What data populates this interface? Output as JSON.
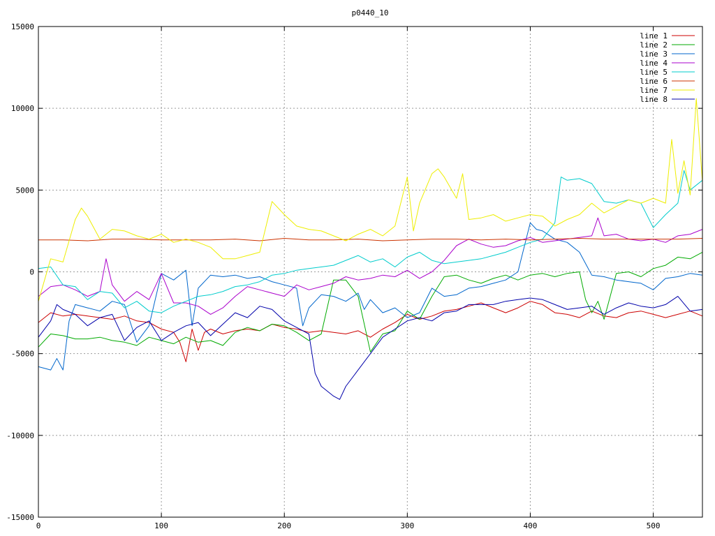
{
  "chart_data": {
    "type": "line",
    "title": "p0440_10",
    "xlabel": "",
    "ylabel": "",
    "xlim": [
      0,
      540
    ],
    "ylim": [
      -15000,
      15000
    ],
    "x_ticks": [
      0,
      100,
      200,
      300,
      400,
      500
    ],
    "y_ticks": [
      -15000,
      -10000,
      -5000,
      0,
      5000,
      10000,
      15000
    ],
    "grid": true,
    "legend_position": "top-right",
    "series": [
      {
        "name": "line 1",
        "color": "#cc0000",
        "x": [
          0,
          10,
          20,
          30,
          40,
          50,
          60,
          70,
          80,
          90,
          100,
          110,
          115,
          120,
          125,
          130,
          135,
          140,
          150,
          160,
          170,
          180,
          190,
          200,
          210,
          220,
          230,
          240,
          250,
          260,
          270,
          280,
          290,
          300,
          310,
          320,
          330,
          340,
          350,
          360,
          370,
          380,
          390,
          400,
          410,
          420,
          430,
          440,
          450,
          460,
          470,
          480,
          490,
          500,
          510,
          520,
          530,
          540
        ],
        "y": [
          -3100,
          -2500,
          -2700,
          -2600,
          -2700,
          -2800,
          -2900,
          -2700,
          -3000,
          -3100,
          -3500,
          -3700,
          -4300,
          -5500,
          -3500,
          -4800,
          -3700,
          -3500,
          -3800,
          -3600,
          -3500,
          -3600,
          -3200,
          -3400,
          -3500,
          -3700,
          -3600,
          -3700,
          -3800,
          -3600,
          -4000,
          -3500,
          -3100,
          -2600,
          -2900,
          -2700,
          -2400,
          -2300,
          -2100,
          -1900,
          -2200,
          -2500,
          -2200,
          -1800,
          -2000,
          -2500,
          -2600,
          -2800,
          -2400,
          -2700,
          -2800,
          -2500,
          -2400,
          -2600,
          -2800,
          -2600,
          -2400,
          -2700
        ]
      },
      {
        "name": "line 2",
        "color": "#00aa00",
        "x": [
          0,
          10,
          20,
          30,
          40,
          50,
          60,
          70,
          80,
          90,
          100,
          110,
          120,
          130,
          140,
          150,
          160,
          170,
          180,
          190,
          200,
          210,
          220,
          230,
          240,
          250,
          260,
          270,
          280,
          290,
          300,
          310,
          320,
          330,
          340,
          350,
          360,
          370,
          380,
          390,
          400,
          410,
          420,
          430,
          440,
          445,
          450,
          455,
          460,
          470,
          480,
          490,
          500,
          510,
          520,
          530,
          540
        ],
        "y": [
          -4600,
          -3800,
          -3900,
          -4100,
          -4100,
          -4000,
          -4200,
          -4300,
          -4500,
          -4000,
          -4200,
          -4400,
          -4000,
          -4300,
          -4200,
          -4500,
          -3700,
          -3400,
          -3600,
          -3200,
          -3300,
          -3700,
          -4200,
          -3800,
          -500,
          -500,
          -1500,
          -4900,
          -3800,
          -3600,
          -2400,
          -2900,
          -1500,
          -300,
          -200,
          -500,
          -700,
          -400,
          -200,
          -500,
          -200,
          -100,
          -300,
          -100,
          0,
          -1700,
          -2500,
          -1800,
          -2900,
          -100,
          0,
          -300,
          200,
          400,
          900,
          800,
          1200
        ]
      },
      {
        "name": "line 3",
        "color": "#0066cc",
        "x": [
          0,
          10,
          15,
          20,
          25,
          30,
          40,
          50,
          60,
          70,
          80,
          90,
          100,
          110,
          120,
          125,
          130,
          140,
          150,
          160,
          170,
          180,
          190,
          200,
          210,
          215,
          220,
          230,
          240,
          250,
          260,
          265,
          270,
          280,
          290,
          300,
          310,
          320,
          330,
          340,
          350,
          360,
          370,
          380,
          390,
          400,
          405,
          410,
          420,
          430,
          440,
          450,
          460,
          470,
          480,
          490,
          500,
          510,
          520,
          530,
          540
        ],
        "y": [
          -5800,
          -6000,
          -5300,
          -6000,
          -3000,
          -2000,
          -2200,
          -2400,
          -1800,
          -2000,
          -4300,
          -3300,
          -100,
          -500,
          100,
          -3300,
          -1000,
          -200,
          -300,
          -200,
          -400,
          -300,
          -600,
          -800,
          -1000,
          -3300,
          -2200,
          -1400,
          -1500,
          -1800,
          -1300,
          -2300,
          -1700,
          -2500,
          -2200,
          -2800,
          -2500,
          -1000,
          -1500,
          -1400,
          -1000,
          -900,
          -700,
          -500,
          0,
          3000,
          2600,
          2500,
          2000,
          1800,
          1200,
          -200,
          -300,
          -500,
          -600,
          -700,
          -1100,
          -400,
          -300,
          -100,
          -200
        ]
      },
      {
        "name": "line 4",
        "color": "#aa00cc",
        "x": [
          0,
          10,
          20,
          30,
          40,
          50,
          55,
          60,
          70,
          80,
          90,
          100,
          110,
          120,
          130,
          140,
          150,
          160,
          170,
          180,
          190,
          200,
          210,
          220,
          230,
          240,
          250,
          260,
          270,
          280,
          290,
          300,
          310,
          320,
          330,
          340,
          350,
          360,
          370,
          380,
          390,
          400,
          410,
          420,
          430,
          440,
          450,
          455,
          460,
          470,
          480,
          490,
          500,
          510,
          520,
          530,
          540
        ],
        "y": [
          -1500,
          -900,
          -800,
          -1100,
          -1500,
          -1200,
          800,
          -800,
          -1800,
          -1200,
          -1700,
          -100,
          -1900,
          -1900,
          -2100,
          -2600,
          -2200,
          -1500,
          -900,
          -1100,
          -1300,
          -1500,
          -800,
          -1100,
          -900,
          -700,
          -300,
          -500,
          -400,
          -200,
          -300,
          100,
          -400,
          0,
          700,
          1600,
          2000,
          1700,
          1500,
          1600,
          1900,
          2100,
          1800,
          1900,
          2000,
          2100,
          2200,
          3300,
          2200,
          2300,
          2000,
          1900,
          2000,
          1800,
          2200,
          2300,
          2600
        ]
      },
      {
        "name": "line 5",
        "color": "#00cccc",
        "x": [
          0,
          10,
          20,
          30,
          40,
          50,
          60,
          70,
          80,
          90,
          100,
          110,
          120,
          130,
          140,
          150,
          160,
          170,
          180,
          190,
          200,
          210,
          220,
          230,
          240,
          250,
          260,
          270,
          280,
          290,
          300,
          310,
          320,
          330,
          340,
          350,
          360,
          370,
          380,
          390,
          400,
          410,
          420,
          425,
          430,
          440,
          450,
          460,
          470,
          480,
          490,
          500,
          510,
          520,
          525,
          530,
          540
        ],
        "y": [
          200,
          300,
          -800,
          -900,
          -1700,
          -1200,
          -1300,
          -2200,
          -1800,
          -2400,
          -2500,
          -2100,
          -1800,
          -1500,
          -1400,
          -1200,
          -900,
          -800,
          -600,
          -200,
          -100,
          100,
          200,
          300,
          400,
          700,
          1000,
          600,
          800,
          300,
          900,
          1200,
          700,
          500,
          600,
          700,
          800,
          1000,
          1200,
          1500,
          1800,
          2000,
          3000,
          5800,
          5600,
          5700,
          5400,
          4300,
          4200,
          4400,
          4200,
          2700,
          3500,
          4200,
          6200,
          5000,
          5600
        ]
      },
      {
        "name": "line 6",
        "color": "#cc3300",
        "x": [
          0,
          20,
          40,
          60,
          80,
          100,
          120,
          140,
          160,
          180,
          200,
          220,
          240,
          260,
          280,
          300,
          320,
          340,
          360,
          380,
          400,
          420,
          440,
          460,
          480,
          500,
          520,
          540
        ],
        "y": [
          1950,
          1950,
          1900,
          2000,
          2000,
          1950,
          1950,
          1950,
          2000,
          1900,
          2050,
          1950,
          1950,
          2000,
          1900,
          1950,
          2000,
          2000,
          1950,
          2000,
          1950,
          2000,
          2050,
          2000,
          2000,
          2000,
          2000,
          2050
        ]
      },
      {
        "name": "line 7",
        "color": "#eeee00",
        "x": [
          0,
          10,
          20,
          30,
          35,
          40,
          50,
          60,
          70,
          80,
          90,
          100,
          110,
          120,
          130,
          140,
          150,
          160,
          170,
          180,
          190,
          200,
          210,
          220,
          230,
          240,
          250,
          260,
          270,
          280,
          290,
          300,
          305,
          310,
          320,
          325,
          330,
          340,
          345,
          350,
          360,
          370,
          380,
          390,
          400,
          410,
          420,
          430,
          440,
          450,
          460,
          470,
          480,
          490,
          500,
          510,
          515,
          520,
          525,
          530,
          535,
          540
        ],
        "y": [
          -1800,
          800,
          600,
          3200,
          3900,
          3400,
          2000,
          2600,
          2500,
          2200,
          2000,
          2300,
          1800,
          2000,
          1800,
          1500,
          800,
          800,
          1000,
          1200,
          4300,
          3500,
          2800,
          2600,
          2500,
          2200,
          1900,
          2300,
          2600,
          2200,
          2800,
          5800,
          2500,
          4200,
          6000,
          6300,
          5800,
          4500,
          6000,
          3200,
          3300,
          3500,
          3100,
          3300,
          3500,
          3400,
          2800,
          3200,
          3500,
          4200,
          3600,
          4000,
          4400,
          4200,
          4500,
          4200,
          8100,
          4800,
          6800,
          4700,
          10600,
          5500
        ]
      },
      {
        "name": "line 8",
        "color": "#0000aa",
        "x": [
          0,
          10,
          15,
          20,
          30,
          40,
          50,
          60,
          70,
          80,
          90,
          100,
          110,
          120,
          130,
          140,
          150,
          160,
          170,
          180,
          190,
          200,
          210,
          220,
          225,
          230,
          240,
          245,
          250,
          260,
          270,
          280,
          290,
          300,
          310,
          320,
          330,
          340,
          350,
          360,
          370,
          380,
          390,
          400,
          410,
          420,
          430,
          440,
          450,
          460,
          470,
          480,
          490,
          500,
          510,
          520,
          530,
          540
        ],
        "y": [
          -4000,
          -3000,
          -2000,
          -2300,
          -2600,
          -3300,
          -2800,
          -2600,
          -4200,
          -3400,
          -3000,
          -4200,
          -3700,
          -3300,
          -3100,
          -3900,
          -3200,
          -2500,
          -2800,
          -2100,
          -2300,
          -3000,
          -3400,
          -3800,
          -6200,
          -7000,
          -7600,
          -7800,
          -7000,
          -6000,
          -5000,
          -4000,
          -3500,
          -3000,
          -2800,
          -3000,
          -2500,
          -2400,
          -2000,
          -2000,
          -2000,
          -1800,
          -1700,
          -1600,
          -1700,
          -2000,
          -2300,
          -2200,
          -2100,
          -2600,
          -2200,
          -1900,
          -2100,
          -2200,
          -2000,
          -1500,
          -2400,
          -2300
        ]
      }
    ]
  }
}
